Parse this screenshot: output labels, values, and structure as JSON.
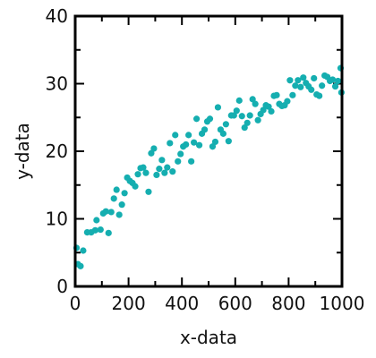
{
  "chart_data": {
    "type": "scatter",
    "title": "",
    "xlabel": "x-data",
    "ylabel": "y-data",
    "xlim": [
      0,
      1000
    ],
    "ylim": [
      0,
      40
    ],
    "x_ticks": [
      0,
      200,
      400,
      600,
      800,
      1000
    ],
    "y_ticks": [
      0,
      10,
      20,
      30,
      40
    ],
    "grid": false,
    "marker_color": "#15aeb0",
    "axis_color": "#000000",
    "series": [
      {
        "points": [
          [
            5,
            5.7
          ],
          [
            10,
            3.3
          ],
          [
            20,
            3.0
          ],
          [
            30,
            5.3
          ],
          [
            45,
            8.0
          ],
          [
            60,
            8.0
          ],
          [
            75,
            8.3
          ],
          [
            80,
            9.8
          ],
          [
            95,
            8.4
          ],
          [
            105,
            10.8
          ],
          [
            115,
            11.1
          ],
          [
            125,
            7.9
          ],
          [
            135,
            11.0
          ],
          [
            145,
            13.0
          ],
          [
            155,
            14.3
          ],
          [
            165,
            10.6
          ],
          [
            175,
            12.1
          ],
          [
            185,
            13.8
          ],
          [
            195,
            16.1
          ],
          [
            205,
            15.6
          ],
          [
            215,
            15.3
          ],
          [
            225,
            14.8
          ],
          [
            235,
            16.6
          ],
          [
            245,
            17.5
          ],
          [
            255,
            17.6
          ],
          [
            265,
            16.8
          ],
          [
            275,
            14.0
          ],
          [
            285,
            19.7
          ],
          [
            295,
            20.4
          ],
          [
            305,
            16.5
          ],
          [
            315,
            17.4
          ],
          [
            325,
            18.7
          ],
          [
            335,
            16.8
          ],
          [
            345,
            17.6
          ],
          [
            355,
            21.2
          ],
          [
            365,
            17.0
          ],
          [
            375,
            22.4
          ],
          [
            385,
            18.5
          ],
          [
            395,
            19.6
          ],
          [
            405,
            20.7
          ],
          [
            415,
            21.0
          ],
          [
            425,
            22.4
          ],
          [
            435,
            18.5
          ],
          [
            445,
            21.3
          ],
          [
            455,
            24.8
          ],
          [
            465,
            20.9
          ],
          [
            475,
            22.6
          ],
          [
            485,
            23.2
          ],
          [
            495,
            24.4
          ],
          [
            505,
            24.8
          ],
          [
            515,
            20.7
          ],
          [
            525,
            21.4
          ],
          [
            535,
            26.5
          ],
          [
            545,
            23.2
          ],
          [
            555,
            22.6
          ],
          [
            565,
            24.0
          ],
          [
            575,
            21.5
          ],
          [
            585,
            25.3
          ],
          [
            595,
            25.3
          ],
          [
            605,
            26.0
          ],
          [
            615,
            27.5
          ],
          [
            625,
            25.2
          ],
          [
            635,
            23.5
          ],
          [
            645,
            24.2
          ],
          [
            655,
            25.3
          ],
          [
            665,
            27.7
          ],
          [
            675,
            27.0
          ],
          [
            685,
            24.6
          ],
          [
            695,
            25.5
          ],
          [
            705,
            26.1
          ],
          [
            715,
            26.8
          ],
          [
            725,
            26.6
          ],
          [
            735,
            25.9
          ],
          [
            745,
            28.2
          ],
          [
            755,
            28.3
          ],
          [
            765,
            27.0
          ],
          [
            775,
            26.7
          ],
          [
            785,
            26.8
          ],
          [
            795,
            27.4
          ],
          [
            805,
            30.5
          ],
          [
            815,
            28.3
          ],
          [
            825,
            29.7
          ],
          [
            835,
            30.5
          ],
          [
            845,
            29.5
          ],
          [
            855,
            30.9
          ],
          [
            865,
            30.1
          ],
          [
            875,
            29.6
          ],
          [
            885,
            29.1
          ],
          [
            895,
            30.8
          ],
          [
            905,
            28.4
          ],
          [
            915,
            28.2
          ],
          [
            925,
            29.7
          ],
          [
            935,
            31.2
          ],
          [
            945,
            31.0
          ],
          [
            955,
            30.4
          ],
          [
            965,
            30.6
          ],
          [
            975,
            29.6
          ],
          [
            985,
            30.4
          ],
          [
            995,
            32.3
          ],
          [
            998,
            28.7
          ]
        ]
      }
    ]
  }
}
